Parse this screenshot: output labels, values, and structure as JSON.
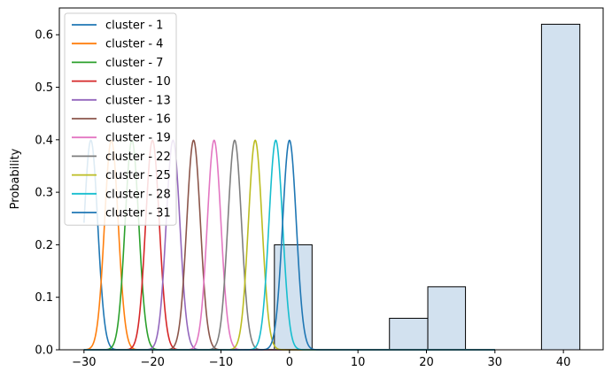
{
  "chart_data": {
    "type": "bar",
    "title": "",
    "xlabel": "",
    "ylabel": "Probability",
    "xlim": [
      -33.6,
      45.8
    ],
    "ylim": [
      0,
      0.651
    ],
    "grid": false,
    "legend_position": "top-left",
    "xticks": [
      -30,
      -20,
      -10,
      0,
      10,
      20,
      30,
      40
    ],
    "yticks": [
      0.0,
      0.1,
      0.2,
      0.3,
      0.4,
      0.5,
      0.6
    ],
    "ytick_labels": [
      "0.0",
      "0.1",
      "0.2",
      "0.3",
      "0.4",
      "0.5",
      "0.6"
    ],
    "histogram": {
      "color": "#d2e1ef",
      "edge_color": "#000000",
      "bins": [
        {
          "x0": -2.2,
          "x1": 3.3,
          "y": 0.2
        },
        {
          "x0": 14.6,
          "x1": 20.2,
          "y": 0.06
        },
        {
          "x0": 20.2,
          "x1": 25.7,
          "y": 0.12
        },
        {
          "x0": 36.8,
          "x1": 42.4,
          "y": 0.62
        }
      ]
    },
    "series": [
      {
        "name": "cluster - 1",
        "color": "#1f77b4",
        "mu": -29,
        "sigma": 1,
        "x_range": [
          -30,
          30
        ]
      },
      {
        "name": "cluster - 4",
        "color": "#ff7f0e",
        "mu": -26,
        "sigma": 1,
        "x_range": [
          -30,
          30
        ]
      },
      {
        "name": "cluster - 7",
        "color": "#2ca02c",
        "mu": -23,
        "sigma": 1,
        "x_range": [
          -30,
          30
        ]
      },
      {
        "name": "cluster - 10",
        "color": "#d62728",
        "mu": -20,
        "sigma": 1,
        "x_range": [
          -30,
          30
        ]
      },
      {
        "name": "cluster - 13",
        "color": "#9467bd",
        "mu": -17,
        "sigma": 1,
        "x_range": [
          -30,
          30
        ]
      },
      {
        "name": "cluster - 16",
        "color": "#8c564b",
        "mu": -14,
        "sigma": 1,
        "x_range": [
          -30,
          30
        ]
      },
      {
        "name": "cluster - 19",
        "color": "#e377c2",
        "mu": -11,
        "sigma": 1,
        "x_range": [
          -30,
          30
        ]
      },
      {
        "name": "cluster - 22",
        "color": "#7f7f7f",
        "mu": -8,
        "sigma": 1,
        "x_range": [
          -30,
          30
        ]
      },
      {
        "name": "cluster - 25",
        "color": "#bcbd22",
        "mu": -5,
        "sigma": 1,
        "x_range": [
          -30,
          30
        ]
      },
      {
        "name": "cluster - 28",
        "color": "#17becf",
        "mu": -2,
        "sigma": 1,
        "x_range": [
          -30,
          30
        ]
      },
      {
        "name": "cluster - 31",
        "color": "#1f77b4",
        "mu": 0,
        "sigma": 1,
        "x_range": [
          -30,
          30
        ]
      }
    ]
  }
}
